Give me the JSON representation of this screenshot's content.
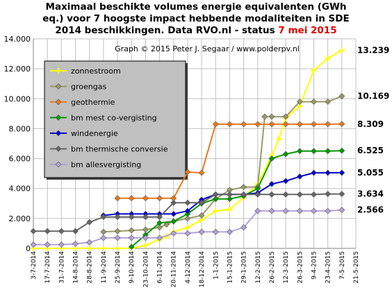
{
  "chart_data": {
    "type": "line",
    "title_lines": [
      "Maximaal beschikte volumes energie equivalenten (GWh",
      "eq.) voor 7 hoogste impact hebbende modaliteiten in SDE"
    ],
    "title_line3_prefix": "2014 beschikkingen. Data RVO.nl - status ",
    "title_line3_highlight": "7 mei 2015",
    "subtitle": "Graph © 2015 Peter J. Segaar / www.polderpv.nl",
    "xlabel": "",
    "ylabel": "",
    "ylim": [
      0,
      14000
    ],
    "yticks": [
      "0",
      "2.000",
      "4.000",
      "6.000",
      "8.000",
      "10.000",
      "12.000",
      "14.000"
    ],
    "x_ticks": [
      "3-7-2014",
      "17-7-2014",
      "31-7-2014",
      "14-8-2014",
      "28-8-2014",
      "11-9-2014",
      "25-9-2014",
      "9-10-2014",
      "23-10-2014",
      "6-11-2014",
      "20-11-2014",
      "4-12-2014",
      "18-12-2014",
      "1-1-2015",
      "15-1-2015",
      "29-1-2015",
      "12-2-2015",
      "26-2-2015",
      "12-3-2015",
      "26-3-2015",
      "9-4-2015",
      "23-4-2015",
      "7-5-2015",
      "21-5-2015"
    ],
    "grid": true,
    "legend_position": "top-left",
    "series": [
      {
        "name": "zonnestroom",
        "color": "#ffff00",
        "marker": "cross",
        "end_label": "13.239",
        "points": [
          [
            0,
            0
          ],
          [
            1,
            0
          ],
          [
            2,
            0
          ],
          [
            3,
            0
          ],
          [
            4,
            0
          ],
          [
            5,
            0
          ],
          [
            6,
            0
          ],
          [
            7,
            0
          ],
          [
            8,
            200
          ],
          [
            9,
            600
          ],
          [
            9.5,
            800
          ],
          [
            10,
            1100
          ],
          [
            11,
            1400
          ],
          [
            12,
            1900
          ],
          [
            13,
            2500
          ],
          [
            14,
            2600
          ],
          [
            15,
            3400
          ],
          [
            16,
            4300
          ],
          [
            17,
            6200
          ],
          [
            17.5,
            7300
          ],
          [
            18,
            8700
          ],
          [
            19,
            9500
          ],
          [
            20,
            11900
          ],
          [
            21,
            12700
          ],
          [
            22,
            13239
          ]
        ]
      },
      {
        "name": "groengas",
        "color": "#999966",
        "marker": "diamond",
        "end_label": "10.169",
        "points": [
          [
            5,
            1100
          ],
          [
            6,
            1150
          ],
          [
            7,
            1200
          ],
          [
            8,
            1250
          ],
          [
            9,
            1400
          ],
          [
            9.5,
            1600
          ],
          [
            10,
            1800
          ],
          [
            11,
            2000
          ],
          [
            12,
            2200
          ],
          [
            13,
            3300
          ],
          [
            14,
            3900
          ],
          [
            15,
            4100
          ],
          [
            16,
            4100
          ],
          [
            16.5,
            8800
          ],
          [
            17,
            8800
          ],
          [
            18,
            8800
          ],
          [
            19,
            9800
          ],
          [
            20,
            9800
          ],
          [
            21,
            9800
          ],
          [
            22,
            10169
          ]
        ]
      },
      {
        "name": "geothermie",
        "color": "#e97a1d",
        "marker": "diamond",
        "end_label": "8.309",
        "points": [
          [
            6,
            3350
          ],
          [
            7,
            3350
          ],
          [
            8,
            3350
          ],
          [
            9,
            3350
          ],
          [
            10,
            3350
          ],
          [
            11,
            5100
          ],
          [
            12,
            5050
          ],
          [
            13,
            8300
          ],
          [
            14,
            8300
          ],
          [
            15,
            8300
          ],
          [
            16,
            8300
          ],
          [
            17,
            8300
          ],
          [
            18,
            8300
          ],
          [
            19,
            8300
          ],
          [
            20,
            8300
          ],
          [
            21,
            8300
          ],
          [
            22,
            8309
          ]
        ]
      },
      {
        "name": "bm mest co-vergisting",
        "color": "#009900",
        "marker": "diamond",
        "end_label": "6.525",
        "points": [
          [
            7,
            100
          ],
          [
            8,
            900
          ],
          [
            9,
            1700
          ],
          [
            10,
            1800
          ],
          [
            11,
            2300
          ],
          [
            12,
            3000
          ],
          [
            13,
            3300
          ],
          [
            14,
            3300
          ],
          [
            15,
            3500
          ],
          [
            16,
            4000
          ],
          [
            17,
            6000
          ],
          [
            18,
            6300
          ],
          [
            19,
            6500
          ],
          [
            20,
            6500
          ],
          [
            21,
            6500
          ],
          [
            22,
            6525
          ]
        ]
      },
      {
        "name": "windenergie",
        "color": "#0000cc",
        "marker": "diamond",
        "end_label": "5.055",
        "points": [
          [
            5,
            2200
          ],
          [
            6,
            2300
          ],
          [
            7,
            2300
          ],
          [
            8,
            2300
          ],
          [
            9,
            2300
          ],
          [
            10,
            2300
          ],
          [
            11,
            2500
          ],
          [
            12,
            3250
          ],
          [
            13,
            3600
          ],
          [
            14,
            3600
          ],
          [
            15,
            3600
          ],
          [
            16,
            3700
          ],
          [
            17,
            4300
          ],
          [
            18,
            4500
          ],
          [
            19,
            4800
          ],
          [
            20,
            5050
          ],
          [
            21,
            5050
          ],
          [
            22,
            5055
          ]
        ]
      },
      {
        "name": "bm thermische conversie",
        "color": "#666666",
        "marker": "diamond",
        "end_label": "3.634",
        "points": [
          [
            0,
            1150
          ],
          [
            1,
            1150
          ],
          [
            2,
            1150
          ],
          [
            3,
            1150
          ],
          [
            4,
            1750
          ],
          [
            5,
            2100
          ],
          [
            6,
            2100
          ],
          [
            7,
            2100
          ],
          [
            8,
            2100
          ],
          [
            9,
            2100
          ],
          [
            10,
            3050
          ],
          [
            11,
            3050
          ],
          [
            12,
            3050
          ],
          [
            13,
            3600
          ],
          [
            14,
            3600
          ],
          [
            15,
            3600
          ],
          [
            16,
            3600
          ],
          [
            17,
            3600
          ],
          [
            18,
            3600
          ],
          [
            19,
            3600
          ],
          [
            20,
            3600
          ],
          [
            21,
            3634
          ],
          [
            22,
            3634
          ]
        ]
      },
      {
        "name": "bm allesvergisting",
        "color": "#b3a2d8",
        "marker": "diamond",
        "end_label": "2.566",
        "points": [
          [
            0,
            250
          ],
          [
            1,
            250
          ],
          [
            2,
            250
          ],
          [
            3,
            300
          ],
          [
            4,
            400
          ],
          [
            5,
            700
          ],
          [
            6,
            700
          ],
          [
            7,
            700
          ],
          [
            8,
            700
          ],
          [
            9,
            700
          ],
          [
            10,
            1000
          ],
          [
            11,
            1000
          ],
          [
            12,
            1100
          ],
          [
            13,
            1100
          ],
          [
            14,
            1100
          ],
          [
            15,
            1400
          ],
          [
            16,
            2500
          ],
          [
            17,
            2500
          ],
          [
            18,
            2500
          ],
          [
            19,
            2500
          ],
          [
            20,
            2500
          ],
          [
            21,
            2500
          ],
          [
            22,
            2566
          ]
        ]
      }
    ]
  }
}
